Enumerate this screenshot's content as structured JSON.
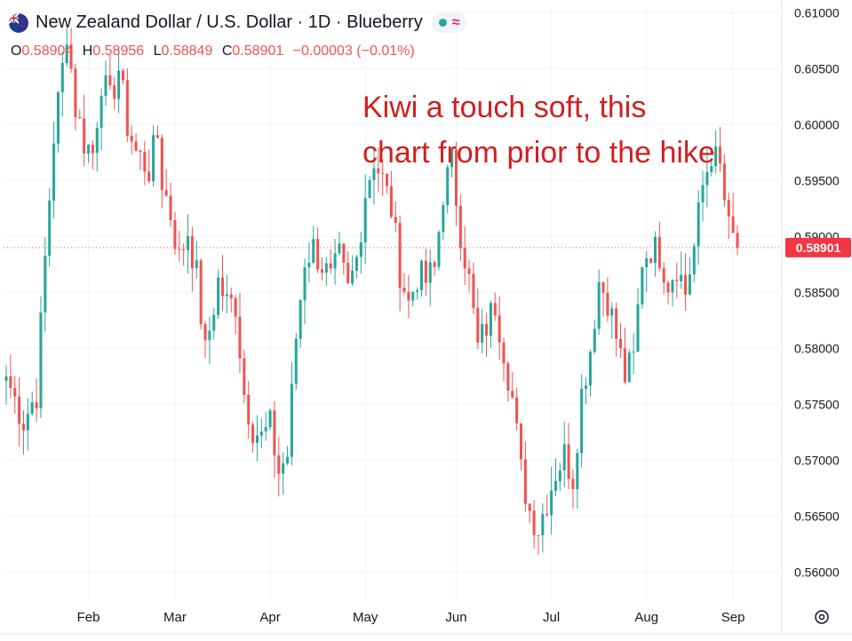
{
  "header": {
    "title": "New Zealand Dollar / U.S. Dollar · 1D · Blueberry",
    "status_dot_color": "#26a69a",
    "wave_icon": "wave-icon"
  },
  "ohlc": {
    "o_label": "O",
    "o_value": "0.58904",
    "h_label": "H",
    "h_value": "0.58956",
    "l_label": "L",
    "l_value": "0.58849",
    "c_label": "C",
    "c_value": "0.58901",
    "change": "−0.00003 (−0.01%)"
  },
  "annotation": {
    "line1": "Kiwi a touch soft, this",
    "line2": "chart from prior to the hike"
  },
  "chart_data": {
    "type": "candlestick",
    "symbol": "NZDUSD",
    "interval": "1D",
    "last_price": "0.58901",
    "ylim": [
      0.5575,
      0.6105
    ],
    "y_ticks": [
      "0.56000",
      "0.56500",
      "0.57000",
      "0.57500",
      "0.58000",
      "0.58500",
      "0.59000",
      "0.59500",
      "0.60000",
      "0.60500",
      "0.61000"
    ],
    "x_ticks": [
      "Feb",
      "Mar",
      "Apr",
      "May",
      "Jun",
      "Jul",
      "Aug",
      "Sep"
    ],
    "x_tick_day_index": [
      19,
      39,
      61,
      83,
      104,
      126,
      148,
      168
    ],
    "grid": true,
    "colors": {
      "up": "#26a69a",
      "down": "#ef5350",
      "grid": "#f0f3fa",
      "price_tag": "#f23645"
    },
    "close_path": [
      [
        0,
        0.5775
      ],
      [
        4,
        0.5735
      ],
      [
        7,
        0.576
      ],
      [
        9,
        0.588
      ],
      [
        11,
        0.599
      ],
      [
        13,
        0.605
      ],
      [
        14,
        0.6085
      ],
      [
        16,
        0.6015
      ],
      [
        18,
        0.5985
      ],
      [
        20,
        0.5975
      ],
      [
        22,
        0.604
      ],
      [
        24,
        0.602
      ],
      [
        26,
        0.605
      ],
      [
        28,
        0.6
      ],
      [
        30,
        0.5975
      ],
      [
        33,
        0.596
      ],
      [
        35,
        0.599
      ],
      [
        36,
        0.595
      ],
      [
        38,
        0.592
      ],
      [
        40,
        0.588
      ],
      [
        42,
        0.5905
      ],
      [
        44,
        0.5865
      ],
      [
        46,
        0.5795
      ],
      [
        49,
        0.586
      ],
      [
        51,
        0.584
      ],
      [
        53,
        0.584
      ],
      [
        55,
        0.576
      ],
      [
        57,
        0.573
      ],
      [
        59,
        0.572
      ],
      [
        61,
        0.573
      ],
      [
        63,
        0.569
      ],
      [
        65,
        0.5705
      ],
      [
        67,
        0.581
      ],
      [
        69,
        0.588
      ],
      [
        71,
        0.589
      ],
      [
        73,
        0.5875
      ],
      [
        75,
        0.586
      ],
      [
        77,
        0.588
      ],
      [
        79,
        0.585
      ],
      [
        81,
        0.588
      ],
      [
        83,
        0.594
      ],
      [
        85,
        0.597
      ],
      [
        87,
        0.595
      ],
      [
        89,
        0.5925
      ],
      [
        91,
        0.587
      ],
      [
        93,
        0.584
      ],
      [
        95,
        0.5865
      ],
      [
        97,
        0.586
      ],
      [
        99,
        0.587
      ],
      [
        101,
        0.594
      ],
      [
        103,
        0.5965
      ],
      [
        105,
        0.5905
      ],
      [
        107,
        0.586
      ],
      [
        109,
        0.58
      ],
      [
        111,
        0.582
      ],
      [
        113,
        0.584
      ],
      [
        115,
        0.58
      ],
      [
        117,
        0.5755
      ],
      [
        119,
        0.569
      ],
      [
        121,
        0.5655
      ],
      [
        123,
        0.564
      ],
      [
        125,
        0.5665
      ],
      [
        127,
        0.569
      ],
      [
        129,
        0.5705
      ],
      [
        131,
        0.5685
      ],
      [
        133,
        0.576
      ],
      [
        135,
        0.58
      ],
      [
        137,
        0.586
      ],
      [
        139,
        0.5845
      ],
      [
        141,
        0.581
      ],
      [
        143,
        0.5775
      ],
      [
        145,
        0.579
      ],
      [
        147,
        0.588
      ],
      [
        149,
        0.589
      ],
      [
        151,
        0.5885
      ],
      [
        153,
        0.586
      ],
      [
        155,
        0.5875
      ],
      [
        157,
        0.585
      ],
      [
        159,
        0.589
      ],
      [
        161,
        0.5945
      ],
      [
        163,
        0.5975
      ],
      [
        165,
        0.596
      ],
      [
        167,
        0.5905
      ],
      [
        169,
        0.589
      ]
    ]
  }
}
